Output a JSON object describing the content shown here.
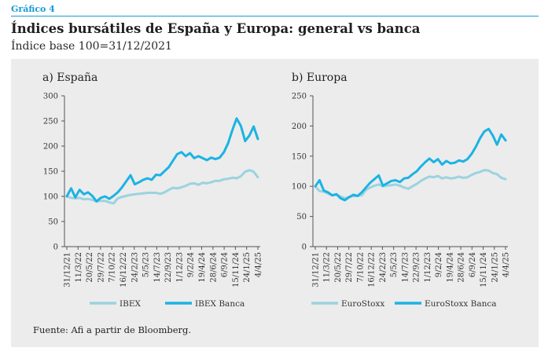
{
  "header": {
    "figure_label": "Gráfico 4",
    "title": "Índices bursátiles de España y Europa: general vs banca",
    "subtitle": "Índice base 100=31/12/2021"
  },
  "footer": {
    "source": "Fuente: Afi a partir de Bloomberg."
  },
  "colors": {
    "general": "#9bd3df",
    "banca": "#1bb3e3",
    "accent": "#1a9ad6",
    "panel": "#ececec"
  },
  "chart_data": [
    {
      "type": "line",
      "title": "a) España",
      "ylim": [
        0,
        300
      ],
      "yticks": [
        0,
        50,
        100,
        150,
        200,
        250,
        300
      ],
      "xtick_labels": [
        "31/12/21",
        "11/3/22",
        "20/5/22",
        "29/7/22",
        "7/10/22",
        "16/12/22",
        "24/2/23",
        "5/5/23",
        "14/7/23",
        "22/9/23",
        "1/12/23",
        "9/2/24",
        "19/4/24",
        "28/6/24",
        "6/9/24",
        "15/11/24",
        "24/1/25",
        "4/4/25"
      ],
      "legend": "bottom",
      "grid": false,
      "series": [
        {
          "name": "IBEX",
          "color": "#9bd3df",
          "values": [
            100,
            97,
            96,
            97,
            94,
            95,
            93,
            90,
            91,
            91,
            88,
            86,
            96,
            99,
            101,
            103,
            104,
            105,
            106,
            107,
            107,
            107,
            105,
            108,
            113,
            117,
            116,
            118,
            121,
            125,
            126,
            123,
            127,
            126,
            128,
            131,
            131,
            134,
            135,
            137,
            136,
            140,
            149,
            152,
            149,
            138
          ]
        },
        {
          "name": "IBEX Banca",
          "color": "#1bb3e3",
          "values": [
            100,
            116,
            98,
            113,
            104,
            108,
            101,
            90,
            97,
            100,
            95,
            101,
            108,
            118,
            130,
            142,
            124,
            128,
            133,
            136,
            133,
            143,
            142,
            150,
            158,
            171,
            184,
            188,
            180,
            186,
            176,
            180,
            176,
            172,
            177,
            174,
            177,
            188,
            206,
            232,
            255,
            240,
            210,
            221,
            239,
            214
          ]
        }
      ]
    },
    {
      "type": "line",
      "title": "b) Europa",
      "ylim": [
        0,
        250
      ],
      "yticks": [
        0,
        50,
        100,
        150,
        200,
        250
      ],
      "xtick_labels": [
        "31/12/21",
        "11/3/22",
        "20/5/22",
        "29/7/22",
        "7/10/22",
        "16/12/22",
        "24/2/23",
        "5/5/23",
        "14/7/23",
        "22/9/23",
        "1/12/23",
        "9/2/24",
        "19/4/24",
        "28/6/24",
        "6/9/24",
        "15/11/24",
        "24/1/25",
        "4/4/25"
      ],
      "legend": "bottom",
      "grid": false,
      "series": [
        {
          "name": "EuroStoxx",
          "color": "#9bd3df",
          "values": [
            100,
            92,
            91,
            88,
            85,
            86,
            83,
            80,
            82,
            84,
            84,
            85,
            94,
            98,
            101,
            103,
            100,
            101,
            102,
            103,
            101,
            98,
            96,
            100,
            104,
            109,
            113,
            116,
            115,
            117,
            113,
            115,
            113,
            114,
            116,
            114,
            115,
            119,
            122,
            124,
            127,
            126,
            122,
            120,
            114,
            112
          ]
        },
        {
          "name": "EuroStoxx Banca",
          "color": "#1bb3e3",
          "values": [
            100,
            110,
            93,
            90,
            85,
            87,
            80,
            77,
            82,
            86,
            84,
            90,
            98,
            106,
            112,
            118,
            101,
            105,
            109,
            110,
            107,
            113,
            114,
            120,
            125,
            133,
            140,
            146,
            140,
            145,
            136,
            142,
            138,
            139,
            143,
            141,
            145,
            154,
            166,
            180,
            191,
            195,
            184,
            169,
            186,
            176
          ]
        }
      ]
    }
  ]
}
